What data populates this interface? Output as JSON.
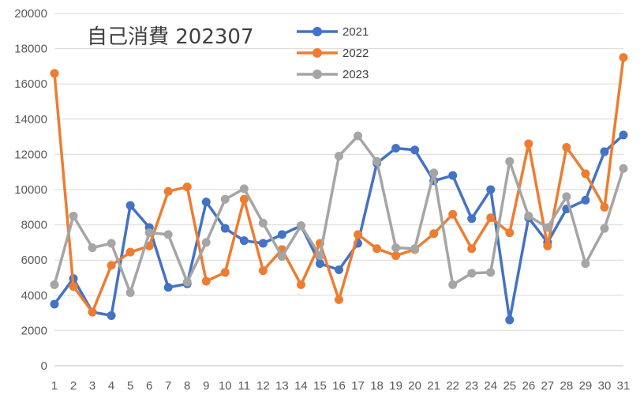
{
  "chart_data": {
    "type": "line",
    "title": "自己消費 202307",
    "xlabel": "",
    "ylabel": "",
    "categories": [
      "1",
      "2",
      "3",
      "4",
      "5",
      "6",
      "7",
      "8",
      "9",
      "10",
      "11",
      "12",
      "13",
      "14",
      "15",
      "16",
      "17",
      "18",
      "19",
      "20",
      "21",
      "22",
      "23",
      "24",
      "25",
      "26",
      "27",
      "28",
      "29",
      "30",
      "31"
    ],
    "ylim": [
      0,
      20000
    ],
    "yticks": [
      0,
      2000,
      4000,
      6000,
      8000,
      10000,
      12000,
      14000,
      16000,
      18000,
      20000
    ],
    "grid": true,
    "legend_position": "top-center",
    "series": [
      {
        "name": "2021",
        "color": "#4472C4",
        "values": [
          3500,
          4950,
          3050,
          2850,
          9100,
          7850,
          4450,
          4650,
          9300,
          7800,
          7100,
          6950,
          7450,
          7950,
          5800,
          5450,
          6950,
          11500,
          12350,
          12250,
          10500,
          10800,
          8350,
          10000,
          2600,
          8400,
          7000,
          8900,
          9400,
          12150,
          13100
        ]
      },
      {
        "name": "2022",
        "color": "#ED7D31",
        "values": [
          16600,
          4500,
          3050,
          5700,
          6450,
          6800,
          9900,
          10150,
          4800,
          5300,
          9450,
          5400,
          6600,
          4600,
          6950,
          3750,
          7450,
          6650,
          6250,
          6600,
          7500,
          8600,
          6650,
          8400,
          7550,
          12600,
          6800,
          12400,
          10900,
          9000,
          17500
        ]
      },
      {
        "name": "2023",
        "color": "#A5A5A5",
        "values": [
          4600,
          8500,
          6700,
          6950,
          4150,
          7550,
          7450,
          4750,
          7000,
          9450,
          10050,
          8100,
          6200,
          7950,
          6250,
          11900,
          13050,
          11600,
          6700,
          6650,
          10950,
          4600,
          5250,
          5300,
          11600,
          8500,
          7850,
          9600,
          5800,
          7800,
          11200
        ]
      }
    ]
  }
}
